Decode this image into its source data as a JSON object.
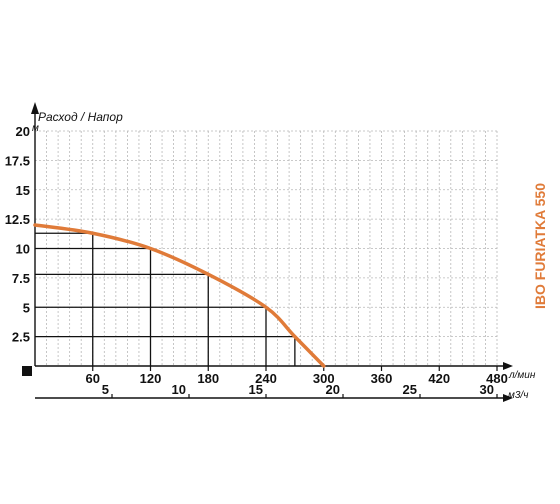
{
  "chart_data": {
    "type": "line",
    "title": "Расход / Напор",
    "model_label": "IBO FURIATKA 550",
    "y_unit": "м",
    "x_unit_primary": "л/мин",
    "x_unit_secondary": "м3/ч",
    "y_ticks": [
      "2.5",
      "5",
      "7.5",
      "10",
      "12.5",
      "15",
      "17.5",
      "20"
    ],
    "x_ticks_primary": [
      "60",
      "120",
      "180",
      "240",
      "300",
      "360",
      "420",
      "480"
    ],
    "x_ticks_secondary": [
      "5",
      "10",
      "15",
      "20",
      "25",
      "30"
    ],
    "xlim": [
      0,
      480
    ],
    "ylim": [
      0,
      20
    ],
    "x2lim": [
      0,
      30
    ],
    "grid": true,
    "curve_color": "#e07b39",
    "series": [
      {
        "x": [
          0,
          60,
          120,
          180,
          240,
          270,
          300
        ],
        "y": [
          12,
          11.3,
          10,
          7.8,
          5,
          2.5,
          0
        ]
      }
    ],
    "reference_points": [
      {
        "x": 60,
        "y": 11.3
      },
      {
        "x": 120,
        "y": 10
      },
      {
        "x": 180,
        "y": 7.8
      },
      {
        "x": 240,
        "y": 5
      },
      {
        "x": 270,
        "y": 2.5
      }
    ]
  }
}
